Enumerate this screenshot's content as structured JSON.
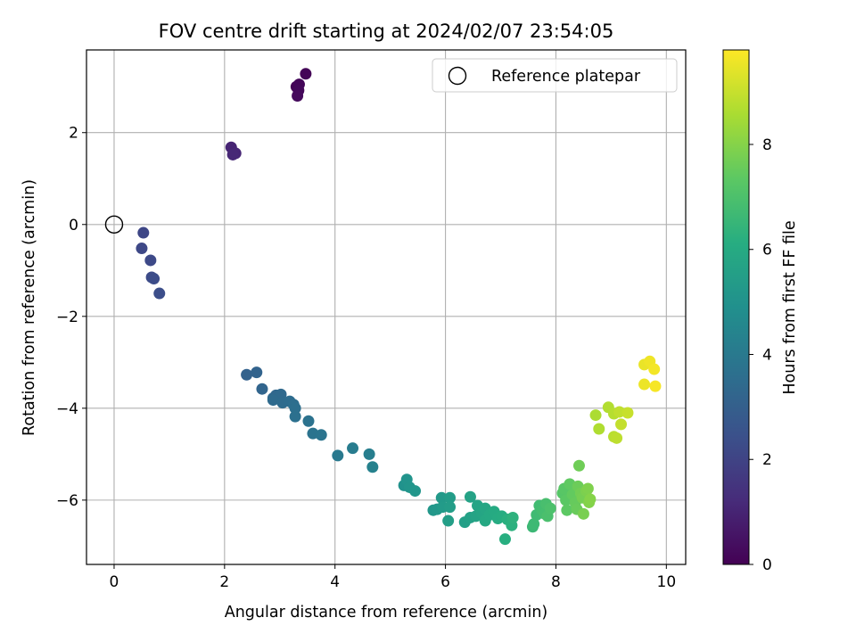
{
  "chart_data": {
    "type": "scatter",
    "title": "FOV centre drift starting at 2024/02/07 23:54:05",
    "xlabel": "Angular distance from reference (arcmin)",
    "ylabel": "Rotation from reference (arcmin)",
    "xlim": [
      -0.5,
      10.35
    ],
    "ylim": [
      -7.4,
      3.8
    ],
    "xticks": [
      0,
      2,
      4,
      6,
      8,
      10
    ],
    "xtick_labels": [
      "0",
      "2",
      "4",
      "6",
      "8",
      "10"
    ],
    "yticks": [
      -6,
      -4,
      -2,
      0,
      2
    ],
    "ytick_labels": [
      "−6",
      "−4",
      "−2",
      "0",
      "2"
    ],
    "grid": true,
    "legend": {
      "position": "top-right",
      "entries": [
        "Reference platepar"
      ]
    },
    "colorbar": {
      "label": "Hours from first FF file",
      "colormap": "viridis",
      "range": [
        0,
        9.8
      ],
      "ticks": [
        0,
        2,
        4,
        6,
        8
      ],
      "tick_labels": [
        "0",
        "2",
        "4",
        "6",
        "8"
      ]
    },
    "reference_point": {
      "x": 0,
      "y": 0
    },
    "points": [
      {
        "x": 3.3,
        "y": 3.0,
        "h": 0.05
      },
      {
        "x": 3.47,
        "y": 3.28,
        "h": 0.1
      },
      {
        "x": 3.35,
        "y": 3.05,
        "h": 0.15
      },
      {
        "x": 3.34,
        "y": 2.92,
        "h": 0.2
      },
      {
        "x": 3.32,
        "y": 2.8,
        "h": 0.25
      },
      {
        "x": 2.12,
        "y": 1.68,
        "h": 1.0
      },
      {
        "x": 2.2,
        "y": 1.55,
        "h": 1.05
      },
      {
        "x": 2.15,
        "y": 1.52,
        "h": 1.1
      },
      {
        "x": 0.53,
        "y": -0.18,
        "h": 2.1
      },
      {
        "x": 0.5,
        "y": -0.52,
        "h": 2.15
      },
      {
        "x": 0.66,
        "y": -0.78,
        "h": 2.2
      },
      {
        "x": 0.68,
        "y": -1.15,
        "h": 2.25
      },
      {
        "x": 0.72,
        "y": -1.18,
        "h": 2.3
      },
      {
        "x": 0.82,
        "y": -1.5,
        "h": 2.35
      },
      {
        "x": 2.4,
        "y": -3.27,
        "h": 3.1
      },
      {
        "x": 2.58,
        "y": -3.22,
        "h": 3.15
      },
      {
        "x": 2.68,
        "y": -3.58,
        "h": 3.2
      },
      {
        "x": 2.88,
        "y": -3.78,
        "h": 3.25
      },
      {
        "x": 2.93,
        "y": -3.72,
        "h": 3.3
      },
      {
        "x": 3.02,
        "y": -3.7,
        "h": 3.35
      },
      {
        "x": 2.88,
        "y": -3.82,
        "h": 3.4
      },
      {
        "x": 3.05,
        "y": -3.88,
        "h": 3.45
      },
      {
        "x": 3.18,
        "y": -3.85,
        "h": 3.5
      },
      {
        "x": 3.25,
        "y": -3.92,
        "h": 3.55
      },
      {
        "x": 3.28,
        "y": -4.0,
        "h": 3.6
      },
      {
        "x": 3.28,
        "y": -4.18,
        "h": 3.65
      },
      {
        "x": 3.52,
        "y": -4.28,
        "h": 3.7
      },
      {
        "x": 3.6,
        "y": -4.55,
        "h": 3.75
      },
      {
        "x": 3.75,
        "y": -4.58,
        "h": 3.8
      },
      {
        "x": 4.05,
        "y": -5.03,
        "h": 4.0
      },
      {
        "x": 4.32,
        "y": -4.87,
        "h": 4.1
      },
      {
        "x": 4.62,
        "y": -5.0,
        "h": 4.2
      },
      {
        "x": 4.68,
        "y": -5.28,
        "h": 4.3
      },
      {
        "x": 5.25,
        "y": -5.68,
        "h": 5.0
      },
      {
        "x": 5.3,
        "y": -5.55,
        "h": 5.05
      },
      {
        "x": 5.35,
        "y": -5.72,
        "h": 5.1
      },
      {
        "x": 5.45,
        "y": -5.8,
        "h": 5.15
      },
      {
        "x": 5.78,
        "y": -6.22,
        "h": 5.2
      },
      {
        "x": 5.85,
        "y": -6.2,
        "h": 5.25
      },
      {
        "x": 5.93,
        "y": -5.95,
        "h": 5.3
      },
      {
        "x": 5.95,
        "y": -6.15,
        "h": 5.35
      },
      {
        "x": 6.08,
        "y": -5.95,
        "h": 5.4
      },
      {
        "x": 6.08,
        "y": -6.15,
        "h": 5.45
      },
      {
        "x": 6.05,
        "y": -6.45,
        "h": 5.5
      },
      {
        "x": 6.35,
        "y": -6.48,
        "h": 5.55
      },
      {
        "x": 6.45,
        "y": -6.38,
        "h": 5.6
      },
      {
        "x": 6.45,
        "y": -5.93,
        "h": 5.65
      },
      {
        "x": 6.55,
        "y": -6.35,
        "h": 5.7
      },
      {
        "x": 6.58,
        "y": -6.12,
        "h": 5.75
      },
      {
        "x": 6.65,
        "y": -6.28,
        "h": 5.8
      },
      {
        "x": 6.72,
        "y": -6.18,
        "h": 5.85
      },
      {
        "x": 6.72,
        "y": -6.45,
        "h": 5.9
      },
      {
        "x": 6.8,
        "y": -6.32,
        "h": 5.95
      },
      {
        "x": 6.88,
        "y": -6.25,
        "h": 6.0
      },
      {
        "x": 6.95,
        "y": -6.4,
        "h": 6.05
      },
      {
        "x": 7.02,
        "y": -6.35,
        "h": 6.1
      },
      {
        "x": 7.08,
        "y": -6.85,
        "h": 6.15
      },
      {
        "x": 7.12,
        "y": -6.42,
        "h": 6.2
      },
      {
        "x": 7.2,
        "y": -6.55,
        "h": 6.25
      },
      {
        "x": 7.22,
        "y": -6.38,
        "h": 6.3
      },
      {
        "x": 7.58,
        "y": -6.58,
        "h": 6.6
      },
      {
        "x": 7.6,
        "y": -6.52,
        "h": 6.65
      },
      {
        "x": 7.65,
        "y": -6.32,
        "h": 6.7
      },
      {
        "x": 7.7,
        "y": -6.12,
        "h": 6.75
      },
      {
        "x": 7.75,
        "y": -6.22,
        "h": 6.8
      },
      {
        "x": 7.8,
        "y": -6.3,
        "h": 6.85
      },
      {
        "x": 7.82,
        "y": -6.08,
        "h": 6.9
      },
      {
        "x": 7.85,
        "y": -6.35,
        "h": 6.95
      },
      {
        "x": 7.9,
        "y": -6.18,
        "h": 7.0
      },
      {
        "x": 8.12,
        "y": -5.85,
        "h": 7.2
      },
      {
        "x": 8.15,
        "y": -5.75,
        "h": 7.25
      },
      {
        "x": 8.18,
        "y": -6.0,
        "h": 7.3
      },
      {
        "x": 8.2,
        "y": -6.22,
        "h": 7.35
      },
      {
        "x": 8.25,
        "y": -5.65,
        "h": 7.4
      },
      {
        "x": 8.3,
        "y": -5.88,
        "h": 7.45
      },
      {
        "x": 8.35,
        "y": -6.05,
        "h": 7.5
      },
      {
        "x": 8.38,
        "y": -6.2,
        "h": 7.55
      },
      {
        "x": 8.4,
        "y": -5.7,
        "h": 7.6
      },
      {
        "x": 8.42,
        "y": -5.25,
        "h": 7.65
      },
      {
        "x": 8.45,
        "y": -5.85,
        "h": 7.7
      },
      {
        "x": 8.48,
        "y": -5.95,
        "h": 7.75
      },
      {
        "x": 8.5,
        "y": -6.3,
        "h": 7.8
      },
      {
        "x": 8.55,
        "y": -5.8,
        "h": 7.85
      },
      {
        "x": 8.58,
        "y": -5.75,
        "h": 7.9
      },
      {
        "x": 8.6,
        "y": -6.05,
        "h": 7.95
      },
      {
        "x": 8.62,
        "y": -5.98,
        "h": 8.0
      },
      {
        "x": 8.72,
        "y": -4.15,
        "h": 8.6
      },
      {
        "x": 8.78,
        "y": -4.45,
        "h": 8.65
      },
      {
        "x": 8.95,
        "y": -3.98,
        "h": 8.7
      },
      {
        "x": 9.05,
        "y": -4.12,
        "h": 8.75
      },
      {
        "x": 9.05,
        "y": -4.62,
        "h": 8.8
      },
      {
        "x": 9.1,
        "y": -4.65,
        "h": 8.85
      },
      {
        "x": 9.15,
        "y": -4.08,
        "h": 8.9
      },
      {
        "x": 9.18,
        "y": -4.35,
        "h": 8.95
      },
      {
        "x": 9.3,
        "y": -4.1,
        "h": 9.0
      },
      {
        "x": 9.6,
        "y": -3.05,
        "h": 9.5
      },
      {
        "x": 9.6,
        "y": -3.48,
        "h": 9.55
      },
      {
        "x": 9.7,
        "y": -2.98,
        "h": 9.6
      },
      {
        "x": 9.78,
        "y": -3.15,
        "h": 9.65
      },
      {
        "x": 9.8,
        "y": -3.52,
        "h": 9.7
      }
    ]
  }
}
